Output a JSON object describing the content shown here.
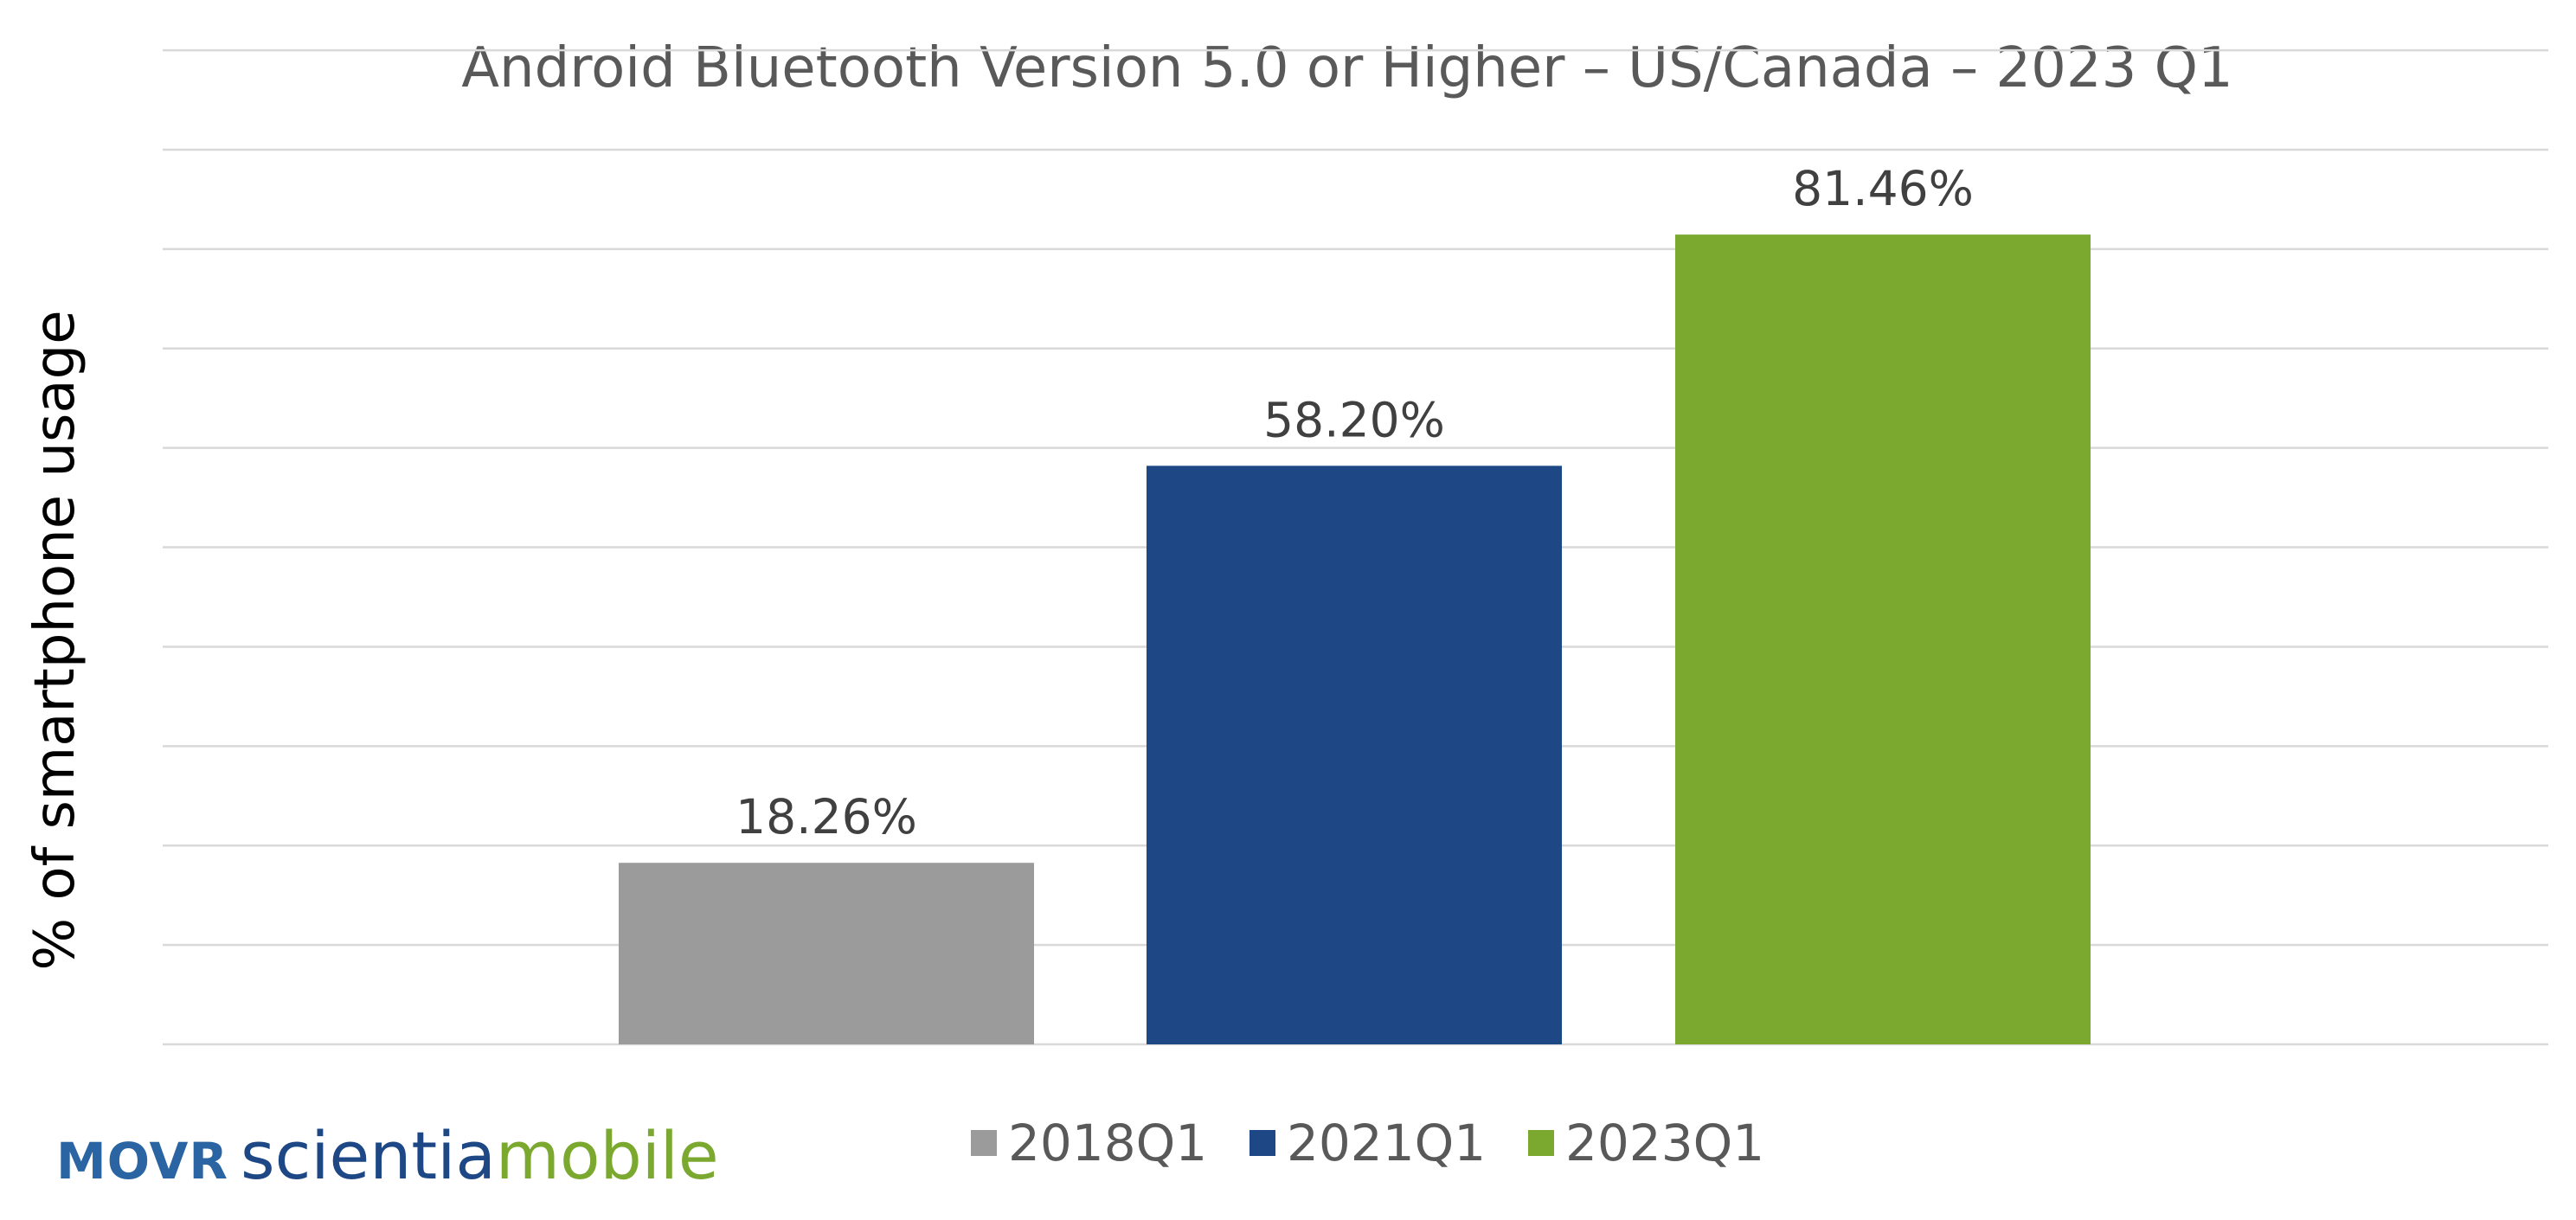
{
  "chart_data": {
    "type": "bar",
    "title": "Android Bluetooth Version 5.0 or Higher – US/Canada – 2023 Q1",
    "xlabel": "",
    "ylabel": "% of smartphone usage",
    "ylim": [
      0,
      90
    ],
    "grid": true,
    "legend_position": "bottom",
    "categories": [
      "2018Q1",
      "2021Q1",
      "2023Q1"
    ],
    "values": [
      18.26,
      58.2,
      81.46
    ],
    "value_labels": [
      "18.26%",
      "58.20%",
      "81.46%"
    ],
    "colors": [
      "#9b9b9b",
      "#1d4885",
      "#7ba930"
    ]
  },
  "brand": {
    "movr": "MOVR",
    "name_part1": "scientia",
    "name_part2": "mobile",
    "color_blue": "#1d4885",
    "color_green": "#7ba930"
  }
}
